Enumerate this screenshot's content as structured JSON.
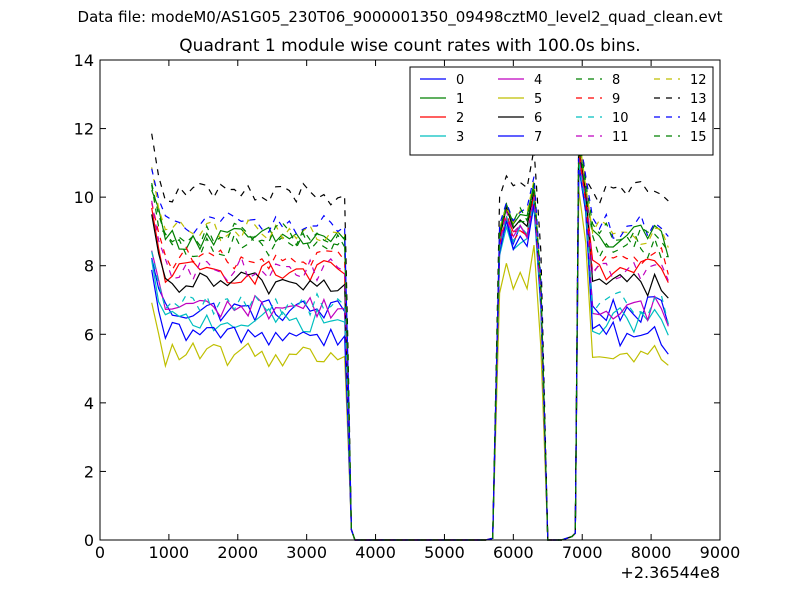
{
  "suptitle": "Data file: modeM0/AS1G05_230T06_9000001350_09498cztM0_level2_quad_clean.evt",
  "chart_data": {
    "type": "line",
    "title": "Quadrant 1 module wise count rates with 100.0s bins.",
    "xlabel": "",
    "ylabel": "",
    "x_offset_label": "+2.36544e8",
    "xlim": [
      0,
      9000
    ],
    "ylim": [
      0,
      14
    ],
    "xticks": [
      0,
      1000,
      2000,
      3000,
      4000,
      5000,
      6000,
      7000,
      8000,
      9000
    ],
    "yticks": [
      0,
      2,
      4,
      6,
      8,
      10,
      12,
      14
    ],
    "grid": false,
    "legend": {
      "location": "top-right",
      "columns": 4
    },
    "series": [
      {
        "name": "0",
        "color": "#0000ff",
        "style": "solid",
        "level": 6.7,
        "peakA": 10.0,
        "peakB": 11.0
      },
      {
        "name": "1",
        "color": "#008000",
        "style": "solid",
        "level": 8.8,
        "peakA": 10.4,
        "peakB": 11.5
      },
      {
        "name": "2",
        "color": "#ff0000",
        "style": "solid",
        "level": 7.8,
        "peakA": 10.0,
        "peakB": 11.2
      },
      {
        "name": "3",
        "color": "#00bfbf",
        "style": "solid",
        "level": 6.4,
        "peakA": 9.7,
        "peakB": 10.9
      },
      {
        "name": "4",
        "color": "#bf00bf",
        "style": "solid",
        "level": 6.8,
        "peakA": 9.9,
        "peakB": 11.3
      },
      {
        "name": "5",
        "color": "#bfbf00",
        "style": "solid",
        "level": 5.4,
        "peakA": 8.6,
        "peakB": 10.2
      },
      {
        "name": "6",
        "color": "#000000",
        "style": "solid",
        "level": 7.5,
        "peakA": 10.2,
        "peakB": 11.4
      },
      {
        "name": "7",
        "color": "#0000ff",
        "style": "solid",
        "level": 6.0,
        "peakA": 9.8,
        "peakB": 10.9
      },
      {
        "name": "8",
        "color": "#008000",
        "style": "dashed",
        "level": 8.6,
        "peakA": 10.3,
        "peakB": 11.6
      },
      {
        "name": "9",
        "color": "#ff0000",
        "style": "dashed",
        "level": 8.2,
        "peakA": 10.1,
        "peakB": 11.4
      },
      {
        "name": "10",
        "color": "#00bfbf",
        "style": "dashed",
        "level": 6.9,
        "peakA": 9.9,
        "peakB": 11.0
      },
      {
        "name": "11",
        "color": "#bf00bf",
        "style": "dashed",
        "level": 7.9,
        "peakA": 10.0,
        "peakB": 11.9
      },
      {
        "name": "12",
        "color": "#bfbf00",
        "style": "dashed",
        "level": 9.0,
        "peakA": 10.5,
        "peakB": 11.8
      },
      {
        "name": "13",
        "color": "#000000",
        "style": "dashed",
        "level": 10.1,
        "peakA": 11.4,
        "peakB": 12.1
      },
      {
        "name": "14",
        "color": "#0000ff",
        "style": "dashed",
        "level": 9.2,
        "peakA": 10.6,
        "peakB": 11.9
      },
      {
        "name": "15",
        "color": "#008000",
        "style": "dashed",
        "level": 8.9,
        "peakA": 10.4,
        "peakB": 11.8
      }
    ]
  }
}
